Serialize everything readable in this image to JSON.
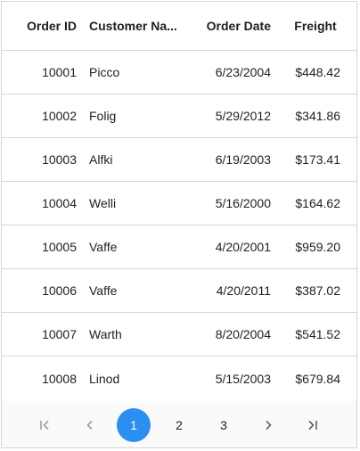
{
  "grid": {
    "columns": {
      "order_id": "Order ID",
      "customer_name": "Customer Na...",
      "order_date": "Order Date",
      "freight": "Freight"
    },
    "rows": [
      {
        "order_id": "10001",
        "customer_name": "Picco",
        "order_date": "6/23/2004",
        "freight": "$448.42"
      },
      {
        "order_id": "10002",
        "customer_name": "Folig",
        "order_date": "5/29/2012",
        "freight": "$341.86"
      },
      {
        "order_id": "10003",
        "customer_name": "Alfki",
        "order_date": "6/19/2003",
        "freight": "$173.41"
      },
      {
        "order_id": "10004",
        "customer_name": "Welli",
        "order_date": "5/16/2000",
        "freight": "$164.62"
      },
      {
        "order_id": "10005",
        "customer_name": "Vaffe",
        "order_date": "4/20/2001",
        "freight": "$959.20"
      },
      {
        "order_id": "10006",
        "customer_name": "Vaffe",
        "order_date": "4/20/2011",
        "freight": "$387.02"
      },
      {
        "order_id": "10007",
        "customer_name": "Warth",
        "order_date": "8/20/2004",
        "freight": "$541.52"
      },
      {
        "order_id": "10008",
        "customer_name": "Linod",
        "order_date": "5/15/2003",
        "freight": "$679.84"
      }
    ]
  },
  "pager": {
    "first_icon": "first-page-icon",
    "prev_icon": "chevron-left-icon",
    "pages": [
      "1",
      "2",
      "3"
    ],
    "current_page": "1",
    "next_icon": "chevron-right-icon",
    "last_icon": "last-page-icon"
  },
  "colors": {
    "accent": "#2b8ff2",
    "border": "#d6d6d6",
    "pager_bg": "#fafafa"
  }
}
